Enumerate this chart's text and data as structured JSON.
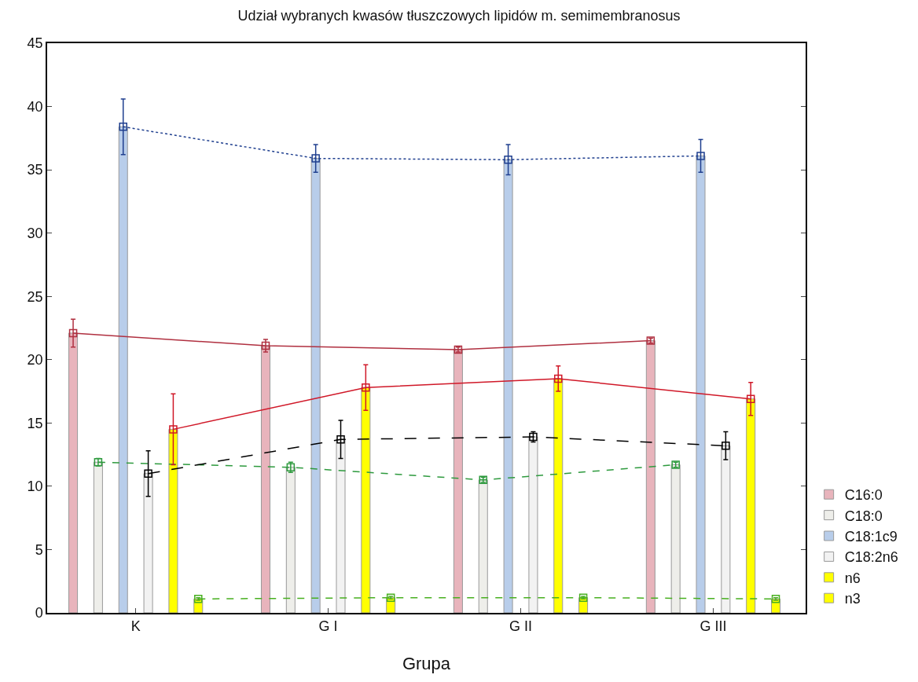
{
  "chart_data": {
    "type": "bar",
    "title": "Udział wybranych kwasów tłuszczowych lipidów m. semimembranosus",
    "xlabel": "Grupa",
    "categories": [
      "K",
      "G I",
      "G II",
      "G III"
    ],
    "ylim": [
      0,
      45
    ],
    "yticks": [
      0,
      5,
      10,
      15,
      20,
      25,
      30,
      35,
      40,
      45
    ],
    "grid": false,
    "legend": "bottom right",
    "marker": "square",
    "series": [
      {
        "name": "C16:0",
        "color": "#e8b4bc",
        "values": [
          22.1,
          21.1,
          20.8,
          21.5
        ]
      },
      {
        "name": "C18:0",
        "color": "#eeeeea",
        "values": [
          11.9,
          11.5,
          10.5,
          11.7
        ]
      },
      {
        "name": "C18:1c9",
        "color": "#b8cdea",
        "values": [
          38.4,
          35.9,
          35.8,
          36.1
        ]
      },
      {
        "name": "C18:2n6",
        "color": "#f2f2f2",
        "values": [
          11.0,
          13.7,
          13.9,
          13.2
        ]
      },
      {
        "name": "n6",
        "color": "#ffff00",
        "values": [
          14.5,
          17.8,
          18.5,
          16.9
        ]
      },
      {
        "name": "n3",
        "color": "#ffff00",
        "values": [
          1.1,
          1.2,
          1.2,
          1.1
        ]
      },
      {
        "type": "line",
        "color": "#b03040",
        "line_style": "solid",
        "values": [
          22.1,
          21.1,
          20.8,
          21.5
        ],
        "errors": [
          1.1,
          0.5,
          0.2,
          0.2
        ]
      },
      {
        "type": "line",
        "color": "#2e9a3e",
        "line_style": "dashed",
        "values": [
          11.9,
          11.5,
          10.5,
          11.7
        ],
        "errors": [
          0.3,
          0.4,
          0.2,
          0.2
        ]
      },
      {
        "type": "line",
        "color": "#1f3f8f",
        "line_style": "dotted",
        "values": [
          38.4,
          35.9,
          35.8,
          36.1
        ],
        "errors": [
          2.2,
          1.1,
          1.2,
          1.3
        ]
      },
      {
        "type": "line",
        "color": "#000000",
        "line_style": "longdash",
        "values": [
          11.0,
          13.7,
          13.9,
          13.2
        ],
        "errors": [
          1.8,
          1.5,
          0.4,
          1.1
        ]
      },
      {
        "type": "line",
        "color": "#d01828",
        "line_style": "solid",
        "values": [
          14.5,
          17.8,
          18.5,
          16.9
        ],
        "errors": [
          2.8,
          1.8,
          1.0,
          1.3
        ]
      },
      {
        "type": "line",
        "color": "#48b020",
        "line_style": "dashed",
        "values": [
          1.1,
          1.2,
          1.2,
          1.1
        ],
        "errors": [
          0.1,
          0.1,
          0.1,
          0.1
        ]
      }
    ]
  }
}
